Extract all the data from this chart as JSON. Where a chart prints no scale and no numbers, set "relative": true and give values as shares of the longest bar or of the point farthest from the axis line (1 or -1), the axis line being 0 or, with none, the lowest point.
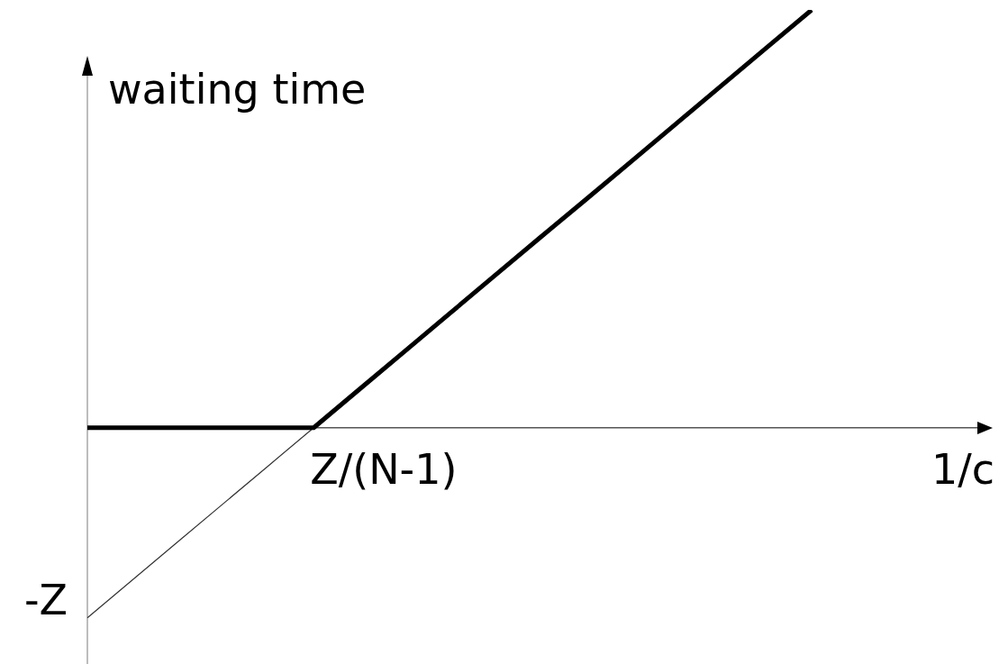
{
  "chart_data": {
    "type": "line",
    "xlabel": "1/c",
    "ylabel": "waiting time",
    "relative": true,
    "categories": [
      null,
      null,
      null,
      null,
      null,
      null,
      null,
      null,
      null,
      null,
      null,
      null,
      null,
      null,
      null,
      null,
      null,
      null,
      null,
      null,
      null
    ],
    "series": [
      {
        "color": "#000000",
        "values": [
          0,
          0,
          0,
          0,
          0,
          0,
          0.091,
          0.182,
          0.273,
          0.364,
          0.455,
          0.545,
          0.636,
          0.727,
          0.818,
          0.909,
          1,
          null,
          null,
          null,
          null
        ]
      },
      {
        "color": "#333333",
        "values": [
          -0.455,
          -0.364,
          -0.273,
          -0.182,
          -0.091,
          0,
          null,
          null,
          null,
          null,
          null,
          null,
          null,
          null,
          null,
          null,
          null,
          null,
          null,
          null,
          null
        ]
      }
    ],
    "annotations": [
      "Z/(N-1)",
      "-Z"
    ]
  }
}
